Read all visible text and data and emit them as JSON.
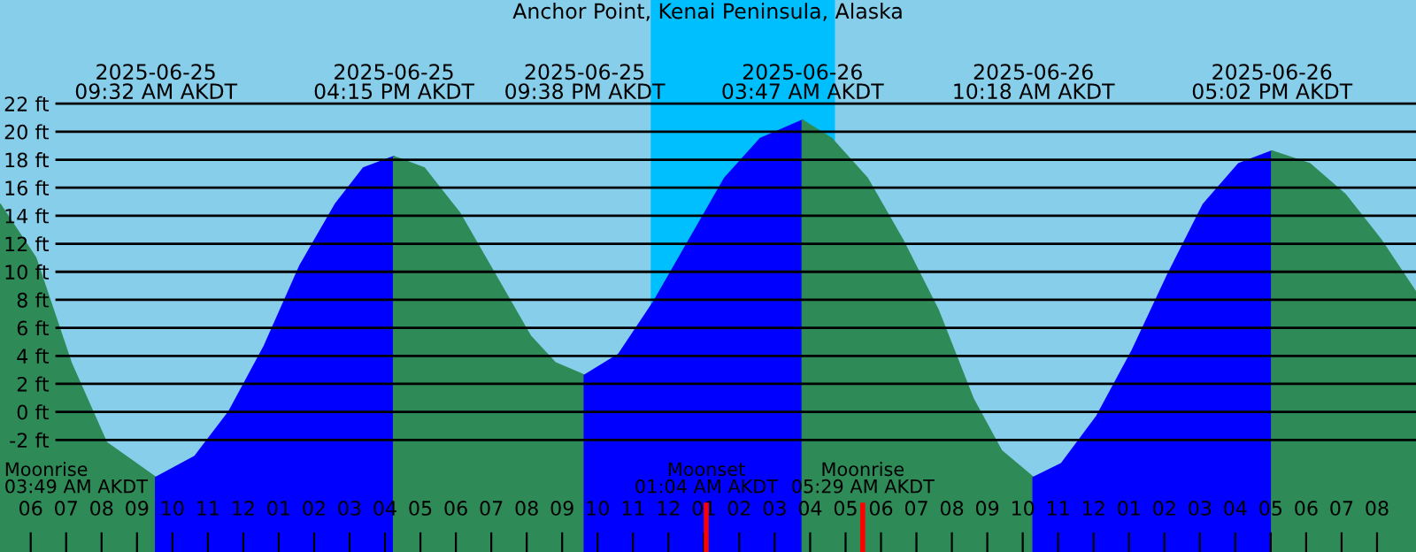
{
  "chart_data": {
    "type": "area",
    "title": "Anchor Point, Kenai Peninsula, Alaska",
    "xlim": [
      "2025-06-25T05:08",
      "2025-06-26T21:06"
    ],
    "ylim": [
      -10,
      29.4
    ],
    "xticks": [
      {
        "value": "2025-06-25T06:00",
        "label": "06"
      },
      {
        "value": "2025-06-25T07:00",
        "label": "07"
      },
      {
        "value": "2025-06-25T08:00",
        "label": "08"
      },
      {
        "value": "2025-06-25T09:00",
        "label": "09"
      },
      {
        "value": "2025-06-25T10:00",
        "label": "10"
      },
      {
        "value": "2025-06-25T11:00",
        "label": "11"
      },
      {
        "value": "2025-06-25T12:00",
        "label": "12"
      },
      {
        "value": "2025-06-25T13:00",
        "label": "01"
      },
      {
        "value": "2025-06-25T14:00",
        "label": "02"
      },
      {
        "value": "2025-06-25T15:00",
        "label": "03"
      },
      {
        "value": "2025-06-25T16:00",
        "label": "04"
      },
      {
        "value": "2025-06-25T17:00",
        "label": "05"
      },
      {
        "value": "2025-06-25T18:00",
        "label": "06"
      },
      {
        "value": "2025-06-25T19:00",
        "label": "07"
      },
      {
        "value": "2025-06-25T20:00",
        "label": "08"
      },
      {
        "value": "2025-06-25T21:00",
        "label": "09"
      },
      {
        "value": "2025-06-25T22:00",
        "label": "10"
      },
      {
        "value": "2025-06-25T23:00",
        "label": "11"
      },
      {
        "value": "2025-06-26T00:00",
        "label": "12"
      },
      {
        "value": "2025-06-26T01:00",
        "label": "01"
      },
      {
        "value": "2025-06-26T02:00",
        "label": "02"
      },
      {
        "value": "2025-06-26T03:00",
        "label": "03"
      },
      {
        "value": "2025-06-26T04:00",
        "label": "04"
      },
      {
        "value": "2025-06-26T05:00",
        "label": "05"
      },
      {
        "value": "2025-06-26T06:00",
        "label": "06"
      },
      {
        "value": "2025-06-26T07:00",
        "label": "07"
      },
      {
        "value": "2025-06-26T08:00",
        "label": "08"
      },
      {
        "value": "2025-06-26T09:00",
        "label": "09"
      },
      {
        "value": "2025-06-26T10:00",
        "label": "10"
      },
      {
        "value": "2025-06-26T11:00",
        "label": "11"
      },
      {
        "value": "2025-06-26T12:00",
        "label": "12"
      },
      {
        "value": "2025-06-26T13:00",
        "label": "01"
      },
      {
        "value": "2025-06-26T14:00",
        "label": "02"
      },
      {
        "value": "2025-06-26T15:00",
        "label": "03"
      },
      {
        "value": "2025-06-26T16:00",
        "label": "04"
      },
      {
        "value": "2025-06-26T17:00",
        "label": "05"
      },
      {
        "value": "2025-06-26T18:00",
        "label": "06"
      },
      {
        "value": "2025-06-26T19:00",
        "label": "07"
      },
      {
        "value": "2025-06-26T20:00",
        "label": "08"
      }
    ],
    "x2lim": [
      "2025-06-25T05:08",
      "2025-06-26T21:06"
    ],
    "x2ticks": [
      {
        "value": "2025-06-25T09:32",
        "label": "2025-06-25\n09:32 AM AKDT"
      },
      {
        "value": "2025-06-25T16:15",
        "label": "2025-06-25\n04:15 PM AKDT"
      },
      {
        "value": "2025-06-25T21:38",
        "label": "2025-06-25\n09:38 PM AKDT"
      },
      {
        "value": "2025-06-26T03:47",
        "label": "2025-06-26\n03:47 AM AKDT"
      },
      {
        "value": "2025-06-26T10:18",
        "label": "2025-06-26\n10:18 AM AKDT"
      },
      {
        "value": "2025-06-26T17:02",
        "label": "2025-06-26\n05:02 PM AKDT"
      }
    ],
    "yticks": [
      {
        "value": -2,
        "label": "-2 ft"
      },
      {
        "value": 0,
        "label": "0 ft"
      },
      {
        "value": 2,
        "label": "2 ft"
      },
      {
        "value": 4,
        "label": "4 ft"
      },
      {
        "value": 6,
        "label": "6 ft"
      },
      {
        "value": 8,
        "label": "8 ft"
      },
      {
        "value": 10,
        "label": "10 ft"
      },
      {
        "value": 12,
        "label": "12 ft"
      },
      {
        "value": 14,
        "label": "14 ft"
      },
      {
        "value": 16,
        "label": "16 ft"
      },
      {
        "value": 18,
        "label": "18 ft"
      },
      {
        "value": 20,
        "label": "20 ft"
      },
      {
        "value": 22,
        "label": "22 ft"
      }
    ],
    "grid": "y",
    "series": [
      {
        "color": "#2e8b57",
        "x": [
          "2025-06-25T05:08",
          "2025-06-25T06:08",
          "2025-06-25T07:08",
          "2025-06-25T08:08",
          "2025-06-25T09:32"
        ],
        "values": [
          14.8,
          11,
          3.5,
          -2.2,
          -4.7
        ]
      },
      {
        "color": "#0000ff",
        "x": [
          "2025-06-25T09:32",
          "2025-06-25T10:38",
          "2025-06-25T11:36",
          "2025-06-25T12:36",
          "2025-06-25T13:36",
          "2025-06-25T14:36",
          "2025-06-25T15:24",
          "2025-06-25T16:15"
        ],
        "values": [
          -4.7,
          -3.2,
          0,
          4.7,
          10.4,
          14.8,
          17.4,
          18.2
        ]
      },
      {
        "color": "#2e8b57",
        "x": [
          "2025-06-25T16:15",
          "2025-06-25T17:06",
          "2025-06-25T18:06",
          "2025-06-25T19:06",
          "2025-06-25T20:06",
          "2025-06-25T20:48",
          "2025-06-25T21:38"
        ],
        "values": [
          18.2,
          17.4,
          14.2,
          9.8,
          5.4,
          3.5,
          2.6
        ]
      },
      {
        "color": "#0000ff",
        "x": [
          "2025-06-25T21:38",
          "2025-06-25T22:36",
          "2025-06-25T23:36",
          "2025-06-26T00:36",
          "2025-06-26T01:36",
          "2025-06-26T02:36",
          "2025-06-26T03:47"
        ],
        "values": [
          2.6,
          4.1,
          7.9,
          12.3,
          16.7,
          19.5,
          20.8
        ]
      },
      {
        "color": "#2e8b57",
        "x": [
          "2025-06-26T03:47",
          "2025-06-26T04:36",
          "2025-06-26T05:36",
          "2025-06-26T06:36",
          "2025-06-26T07:36",
          "2025-06-26T08:36",
          "2025-06-26T09:24",
          "2025-06-26T10:18"
        ],
        "values": [
          20.8,
          19.5,
          16.7,
          12.3,
          7.3,
          0.9,
          -2.8,
          -4.7
        ]
      },
      {
        "color": "#0000ff",
        "x": [
          "2025-06-26T10:18",
          "2025-06-26T11:06",
          "2025-06-26T12:06",
          "2025-06-26T13:06",
          "2025-06-26T14:06",
          "2025-06-26T15:06",
          "2025-06-26T16:06",
          "2025-06-26T17:02"
        ],
        "values": [
          -4.7,
          -3.7,
          -0.3,
          4.4,
          9.8,
          14.8,
          17.7,
          18.6
        ]
      },
      {
        "color": "#2e8b57",
        "x": [
          "2025-06-26T17:02",
          "2025-06-26T18:06",
          "2025-06-26T19:06",
          "2025-06-26T20:06",
          "2025-06-26T21:06"
        ],
        "values": [
          18.6,
          17.7,
          15.5,
          12.3,
          8.5
        ]
      }
    ],
    "bands": [
      {
        "axis": "x",
        "from": "2025-06-25T23:30",
        "to": "2025-06-26T04:42",
        "color": "#00bfff"
      }
    ],
    "ref_lines": [
      {
        "axis": "x",
        "value": "2025-06-26T01:04",
        "label": "Moonset\n01:04 AM AKDT",
        "color": "#ff0000"
      },
      {
        "axis": "x",
        "value": "2025-06-26T05:29",
        "label": "Moonrise\n05:29 AM AKDT",
        "color": "#ff0000"
      }
    ],
    "annotations": [
      "Moonrise\n03:49 AM AKDT"
    ]
  }
}
